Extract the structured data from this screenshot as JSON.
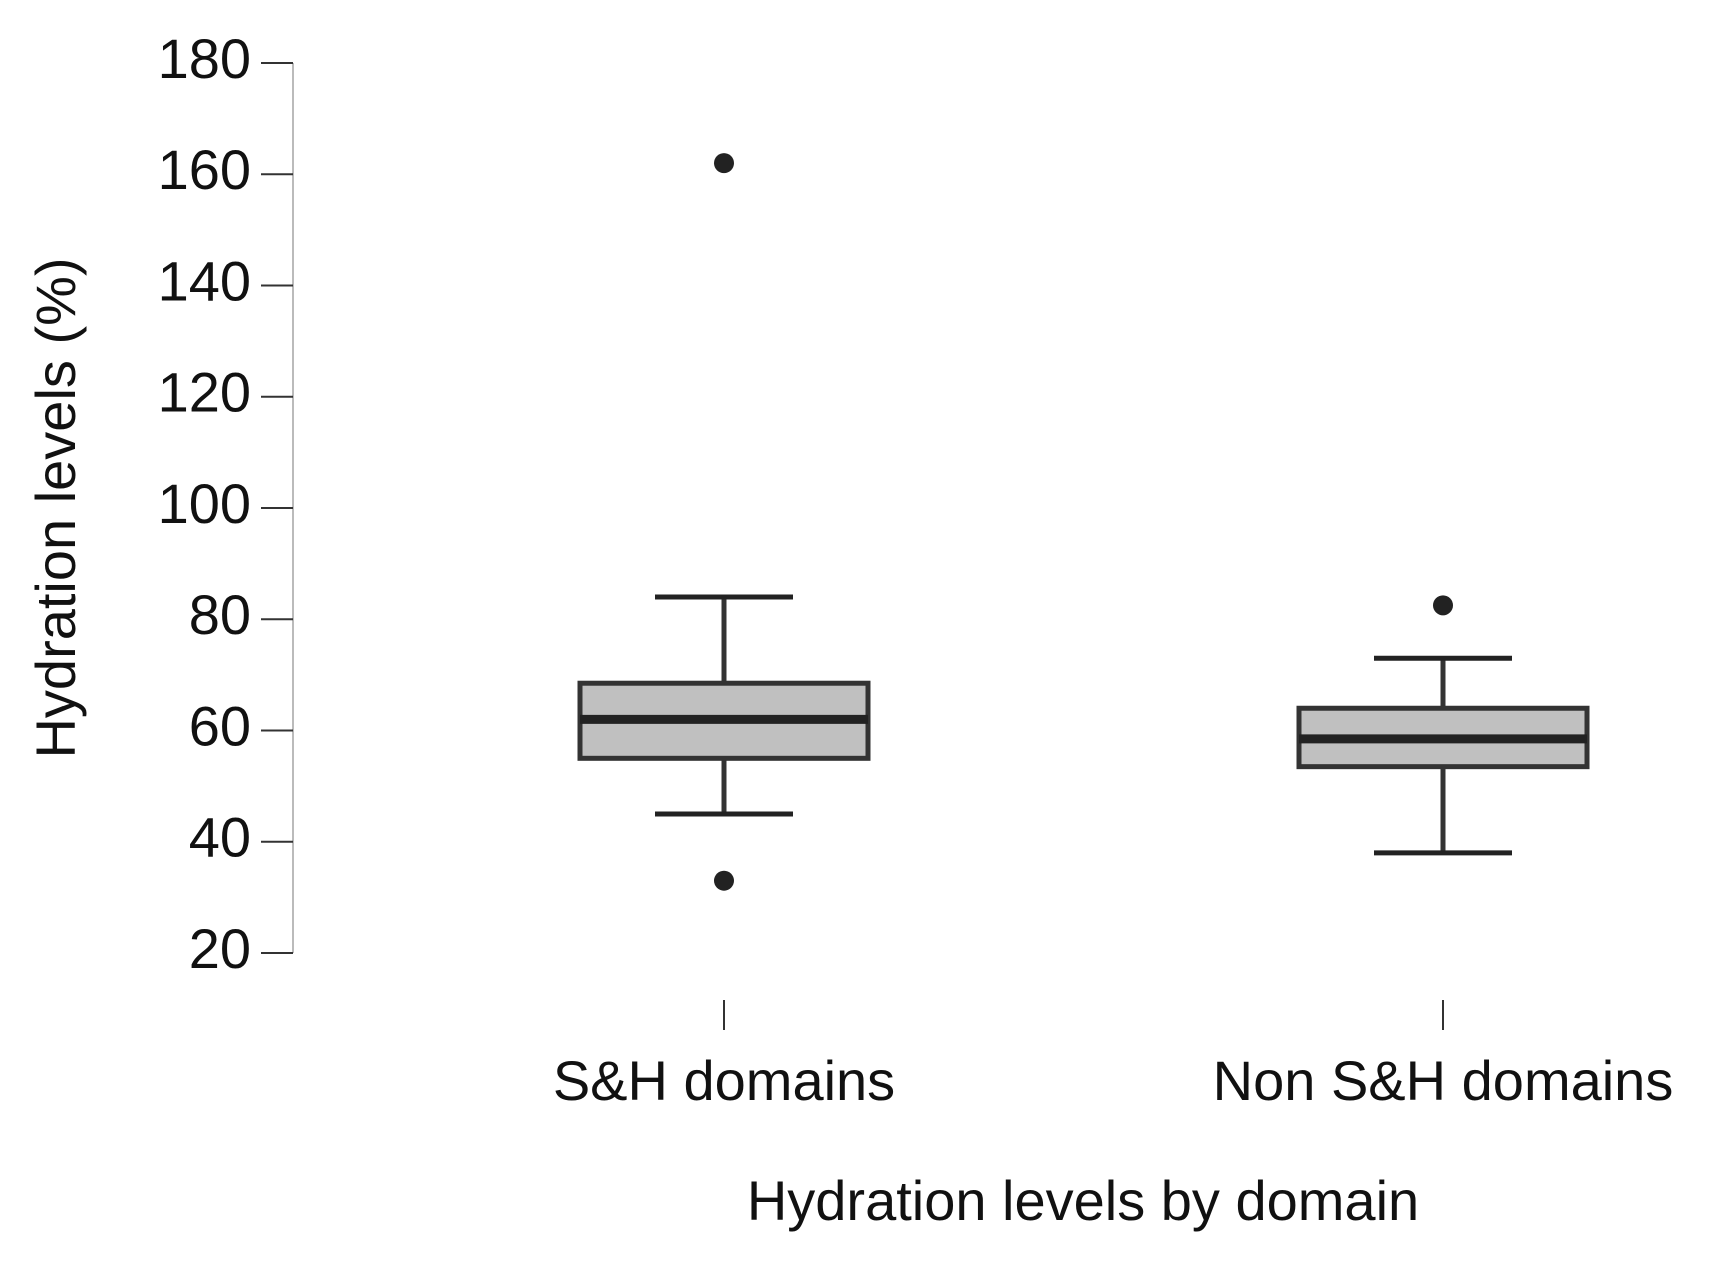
{
  "chart_data": {
    "type": "box",
    "y_label": "Hydration levels (%)",
    "x_label": "Hydration levels by domain",
    "categories": [
      "S&H domains",
      "Non S&H domains"
    ],
    "boxes": [
      {
        "whisker_low": 45,
        "q1": 55,
        "median": 62,
        "q3": 68.5,
        "whisker_high": 84,
        "outliers": [
          162,
          33
        ]
      },
      {
        "whisker_low": 38,
        "q1": 53.5,
        "median": 58.5,
        "q3": 64,
        "whisker_high": 73,
        "outliers": [
          82.5
        ]
      }
    ],
    "color": "#c0c0c0",
    "ylim": [
      20,
      180
    ],
    "yticks": [
      20,
      40,
      60,
      80,
      100,
      120,
      140,
      160,
      180
    ]
  }
}
